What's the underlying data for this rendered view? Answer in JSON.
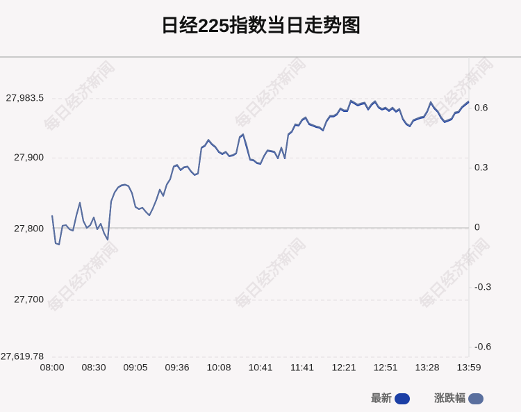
{
  "chart_data": {
    "type": "line",
    "title": "日经225指数当日走势图",
    "watermark": "每日经济新闻",
    "categories": [
      "08:00",
      null,
      null,
      null,
      null,
      null,
      null,
      null,
      null,
      null,
      null,
      null,
      "08:30",
      null,
      null,
      null,
      null,
      null,
      null,
      null,
      null,
      null,
      null,
      null,
      "09:05",
      null,
      null,
      null,
      null,
      null,
      null,
      null,
      null,
      null,
      null,
      null,
      "09:36",
      null,
      null,
      null,
      null,
      null,
      null,
      null,
      null,
      null,
      null,
      null,
      "10:08",
      null,
      null,
      null,
      null,
      null,
      null,
      null,
      null,
      null,
      null,
      null,
      "10:41",
      null,
      null,
      null,
      null,
      null,
      null,
      null,
      null,
      null,
      null,
      null,
      "11:41",
      null,
      null,
      null,
      null,
      null,
      null,
      null,
      null,
      null,
      null,
      null,
      "12:21",
      null,
      null,
      null,
      null,
      null,
      null,
      null,
      null,
      null,
      null,
      null,
      "12:51",
      null,
      null,
      null,
      null,
      null,
      null,
      null,
      null,
      null,
      null,
      null,
      "13:28",
      null,
      null,
      null,
      null,
      null,
      null,
      null,
      null,
      null,
      null,
      null,
      "13:59"
    ],
    "series": [
      {
        "name": "最新",
        "color": "#1c3fa5",
        "values": [
          27819.2,
          27780.1,
          27778.2,
          27804.6,
          27805.6,
          27799.7,
          27797.7,
          27819.2,
          27836.8,
          27811.4,
          27801.6,
          27805.6,
          27816.3,
          27799.7,
          27807.5,
          27793.8,
          27785.0,
          27838.8,
          27851.5,
          27858.4,
          27861.3,
          27862.3,
          27860.3,
          27850.5,
          27831.0,
          27828.0,
          27830.0,
          27824.1,
          27819.2,
          27829.0,
          27840.8,
          27855.4,
          27846.6,
          27862.3,
          27870.1,
          27887.7,
          27889.6,
          27882.8,
          27886.7,
          27887.7,
          27880.8,
          27876.0,
          27877.9,
          27914.1,
          27917.0,
          27924.8,
          27919.0,
          27915.1,
          27908.2,
          27905.3,
          27908.2,
          27902.4,
          27903.3,
          27906.3,
          27928.7,
          27932.7,
          27915.1,
          27897.5,
          27896.5,
          27892.6,
          27891.6,
          27902.4,
          27910.2,
          27909.2,
          27908.2,
          27899.4,
          27914.1,
          27899.4,
          27932.7,
          27936.6,
          27946.3,
          27945.4,
          27953.2,
          27956.1,
          27947.3,
          27945.4,
          27943.4,
          27942.4,
          27938.5,
          27951.2,
          27958.1,
          27958.1,
          27961.0,
          27968.8,
          27965.9,
          27965.9,
          27979.6,
          27976.7,
          27973.7,
          27975.7,
          27976.7,
          27967.9,
          27974.7,
          27978.6,
          27970.8,
          27967.9,
          27969.8,
          27965.9,
          27969.8,
          27964.9,
          27967.9,
          27954.2,
          27947.3,
          27944.4,
          27952.2,
          27954.2,
          27956.1,
          27957.1,
          27964.9,
          27977.6,
          27969.8,
          27964.9,
          27956.1,
          27950.3,
          27952.2,
          27954.2,
          27963.0,
          27963.9,
          27970.8,
          27974.7,
          27978.6
        ]
      },
      {
        "name": "涨跌幅",
        "color": "#5a6f9e",
        "axis": "y2",
        "values": [
          0.063,
          -0.077,
          -0.084,
          0.011,
          0.014,
          -0.007,
          -0.014,
          0.063,
          0.127,
          0.035,
          0,
          0.014,
          0.053,
          -0.007,
          0.021,
          -0.028,
          -0.06,
          0.134,
          0.179,
          0.204,
          0.215,
          0.218,
          0.211,
          0.176,
          0.106,
          0.095,
          0.102,
          0.081,
          0.063,
          0.098,
          0.141,
          0.193,
          0.162,
          0.218,
          0.246,
          0.309,
          0.317,
          0.292,
          0.306,
          0.309,
          0.285,
          0.267,
          0.274,
          0.404,
          0.415,
          0.443,
          0.422,
          0.408,
          0.383,
          0.373,
          0.383,
          0.362,
          0.366,
          0.376,
          0.457,
          0.471,
          0.415,
          0.345,
          0.341,
          0.327,
          0.324,
          0.362,
          0.39,
          0.387,
          0.383,
          0.352,
          0.404,
          0.352,
          0.471,
          0.485,
          0.521,
          0.517,
          0.545,
          0.556,
          0.524,
          0.517,
          0.51,
          0.506,
          0.492,
          0.538,
          0.563,
          0.563,
          0.573,
          0.601,
          0.591,
          0.591,
          0.64,
          0.63,
          0.619,
          0.626,
          0.63,
          0.598,
          0.623,
          0.637,
          0.608,
          0.598,
          0.605,
          0.591,
          0.605,
          0.587,
          0.598,
          0.549,
          0.524,
          0.513,
          0.542,
          0.549,
          0.556,
          0.559,
          0.587,
          0.633,
          0.605,
          0.587,
          0.556,
          0.535,
          0.542,
          0.549,
          0.58,
          0.584,
          0.608,
          0.623,
          0.637
        ]
      }
    ],
    "ylim": [
      27619.78,
      27983.5
    ],
    "yticks": [
      {
        "value": 27983.5,
        "label": "27,983.5"
      },
      {
        "value": 27900,
        "label": "27,900"
      },
      {
        "value": 27800,
        "label": "27,800"
      },
      {
        "value": 27700,
        "label": "27,700"
      },
      {
        "value": 27619.78,
        "label": "27,619.78"
      }
    ],
    "y2lim": [
      -0.649,
      0.649
    ],
    "y2ticks": [
      0.6,
      0.3,
      0,
      -0.3,
      -0.6
    ],
    "grid": true,
    "legend": "bottom-right"
  }
}
